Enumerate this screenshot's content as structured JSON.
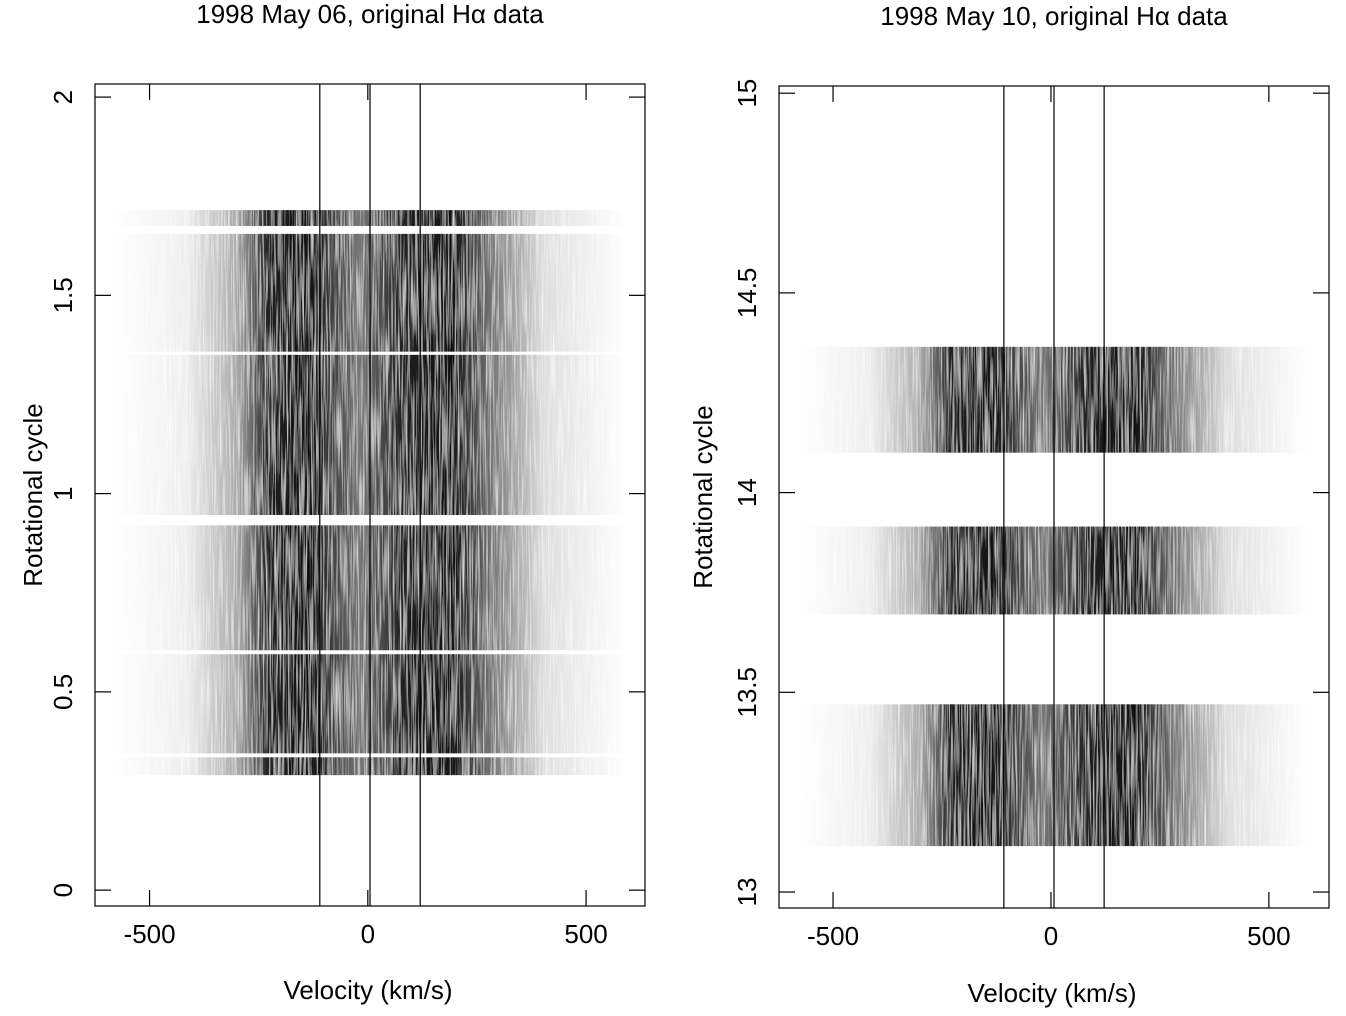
{
  "chart_data": [
    {
      "type": "image",
      "title": "1998 May 06, original Hα data",
      "xlabel": "Velocity (km/s)",
      "ylabel": "Rotational cycle",
      "xlim": [
        -625,
        635
      ],
      "ylim": [
        -0.04,
        2.033
      ],
      "xticks": [
        -500,
        0,
        500
      ],
      "yticks": [
        0,
        0.5,
        1,
        1.5,
        2
      ],
      "vlines": [
        -110,
        5,
        120
      ],
      "data_x_range": [
        -580,
        590
      ],
      "bands": [
        [
          0.29,
          0.335
        ],
        [
          0.345,
          0.595
        ],
        [
          0.605,
          0.92
        ],
        [
          0.946,
          1.35
        ],
        [
          1.358,
          1.655
        ],
        [
          1.675,
          1.715
        ]
      ],
      "colormap": "gray"
    },
    {
      "type": "image",
      "title": "1998 May 10, original Hα data",
      "xlabel": "Velocity (km/s)",
      "ylabel": "Rotational cycle",
      "xlim": [
        -624,
        638
      ],
      "ylim": [
        12.96,
        15.018
      ],
      "xticks": [
        -500,
        0,
        500
      ],
      "yticks": [
        13,
        13.5,
        14,
        14.5,
        15
      ],
      "vlines": [
        -108,
        7,
        122
      ],
      "data_x_range": [
        -580,
        590
      ],
      "bands": [
        [
          13.115,
          13.47
        ],
        [
          13.695,
          13.915
        ],
        [
          14.1,
          14.365
        ]
      ],
      "colormap": "gray"
    }
  ]
}
